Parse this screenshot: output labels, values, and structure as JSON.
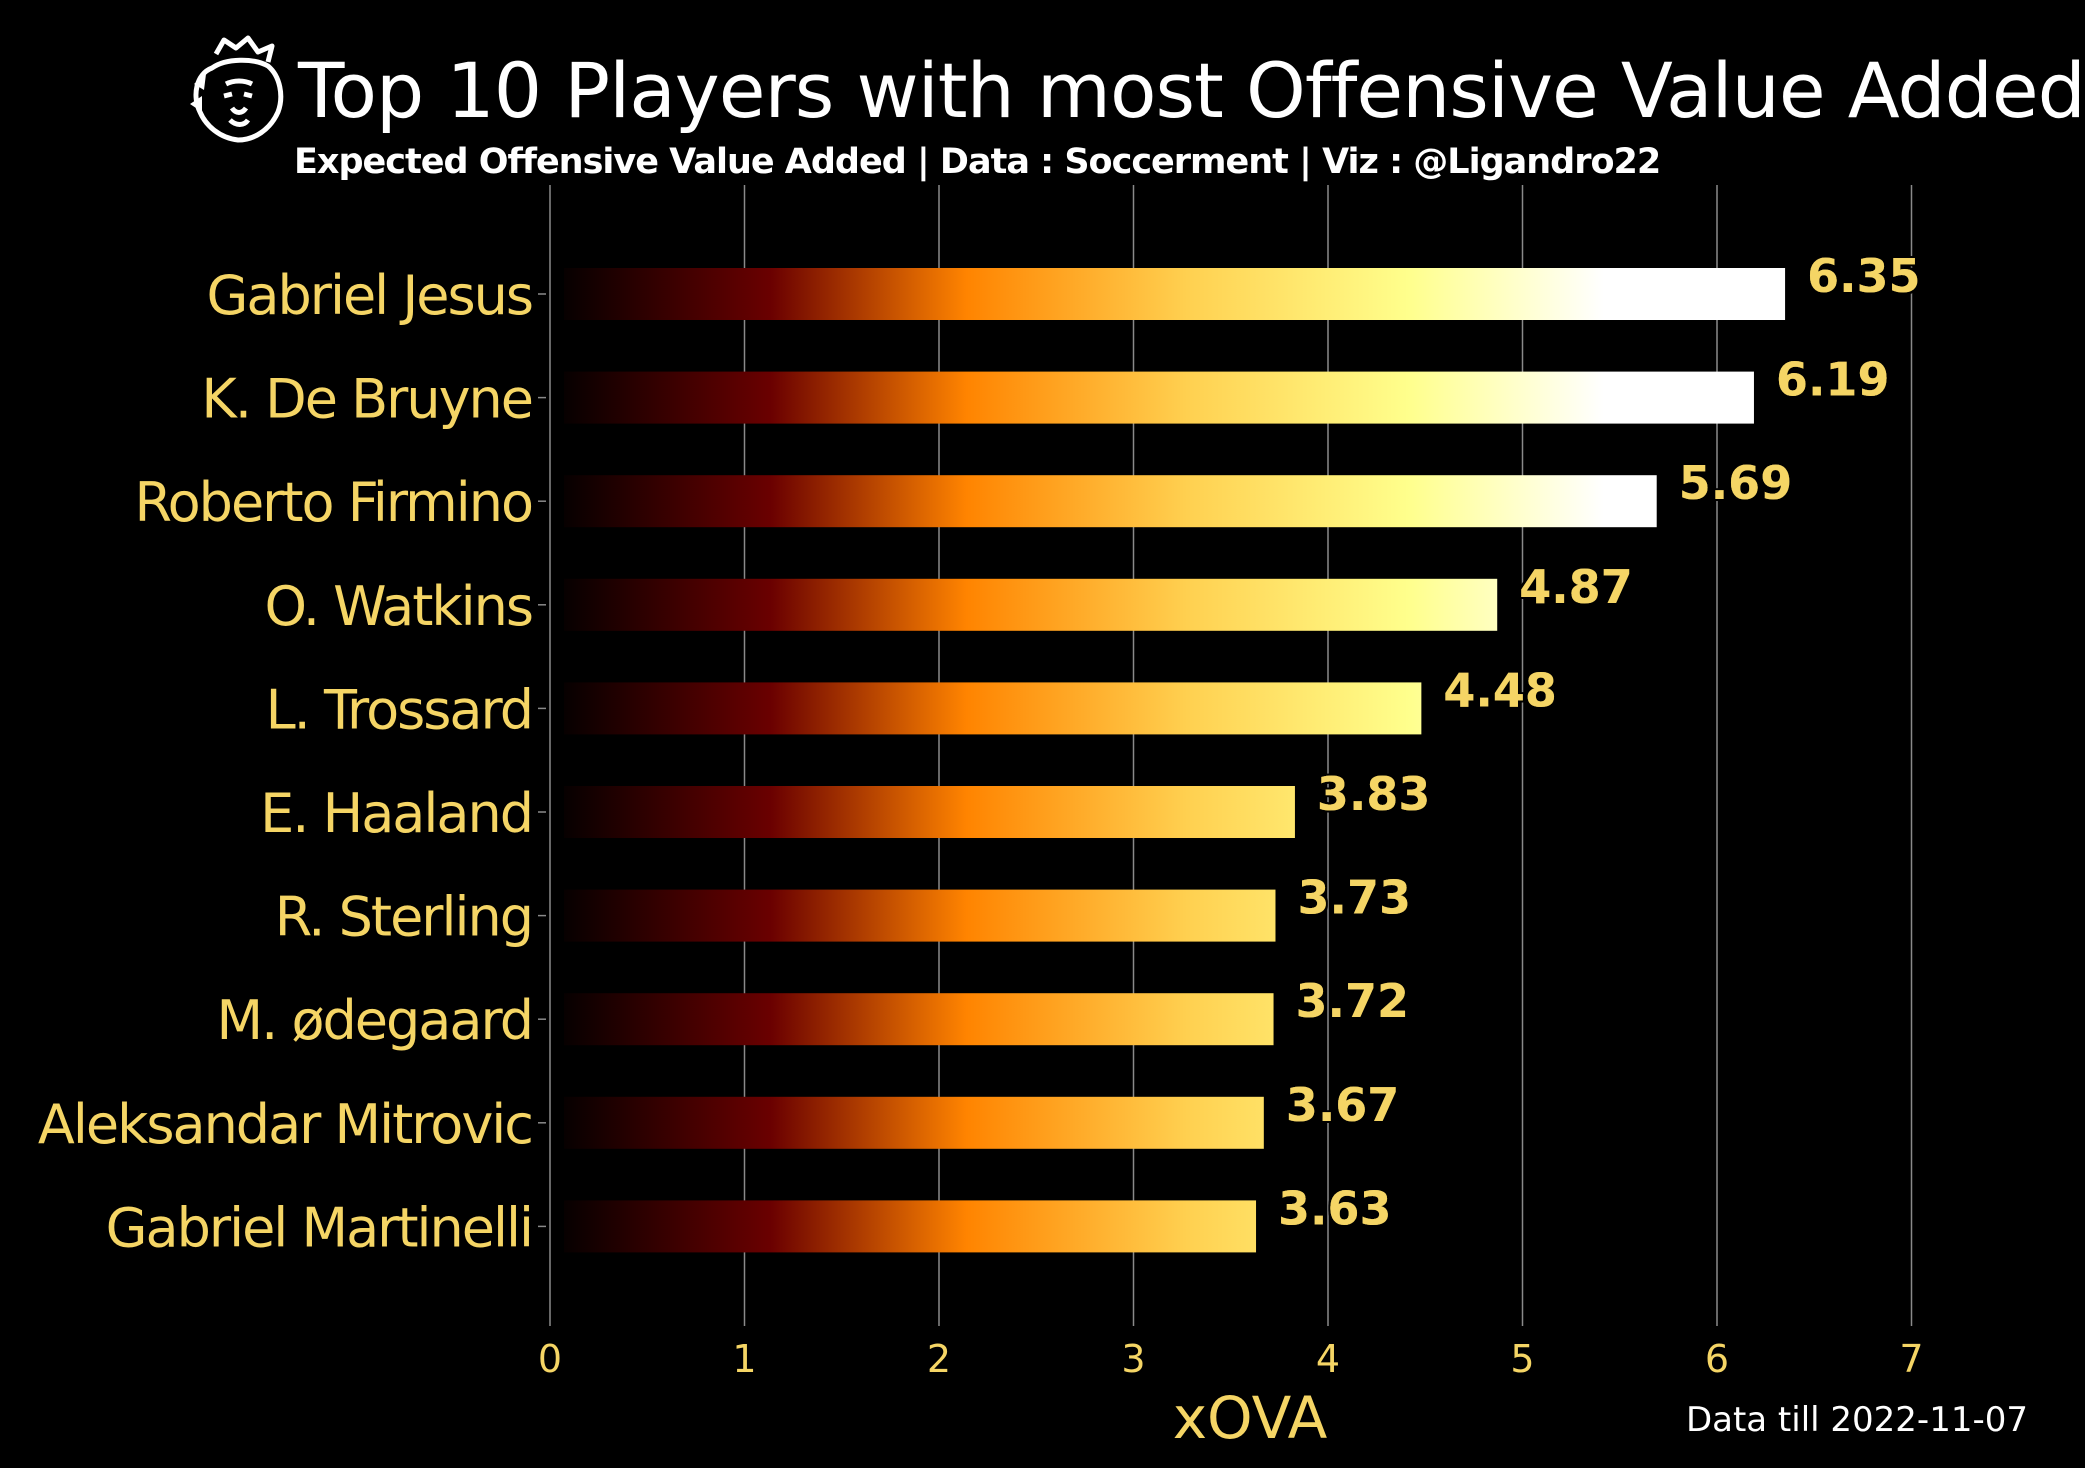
{
  "header": {
    "title": "Top 10 Players with most Offensive Value Added",
    "subtitle": "Expected Offensive Value Added | Data : Soccerment | Viz : @Ligandro22"
  },
  "footnote": "Data till 2022-11-07",
  "logo_icon": "premier-league-lion-icon",
  "colors": {
    "background": "#000000",
    "label": "#f5d565",
    "grid": "#8a8a8a",
    "gradient": [
      "#000000",
      "#6a0000",
      "#ff8400",
      "#ffd050",
      "#ffff8c",
      "#ffffff"
    ]
  },
  "chart_data": {
    "type": "bar",
    "orientation": "horizontal",
    "categories": [
      "Gabriel Jesus",
      "K. De Bruyne",
      "Roberto Firmino",
      "O. Watkins",
      "L. Trossard",
      "E. Haaland",
      "R. Sterling",
      "M. ødegaard",
      "Aleksandar Mitrovic",
      "Gabriel Martinelli"
    ],
    "values": [
      6.35,
      6.19,
      5.69,
      4.87,
      4.48,
      3.83,
      3.73,
      3.72,
      3.67,
      3.63
    ],
    "value_labels": [
      "6.35",
      "6.19",
      "5.69",
      "4.87",
      "4.48",
      "3.83",
      "3.73",
      "3.72",
      "3.67",
      "3.63"
    ],
    "xlabel": "xOVA",
    "ylabel": "",
    "xlim": [
      0,
      7
    ],
    "xticks": [
      "0",
      "1",
      "2",
      "3",
      "4",
      "5",
      "6",
      "7"
    ],
    "grid": "vertical",
    "legend": "none"
  }
}
